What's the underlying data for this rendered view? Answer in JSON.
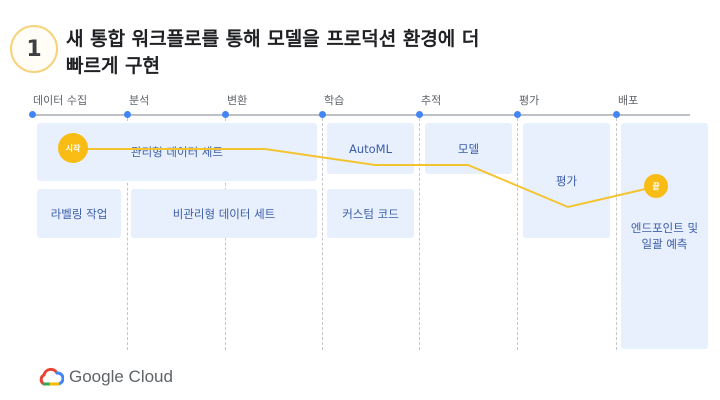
{
  "header": {
    "step_number": "1",
    "title_line1": "새 통합 워크플로를 통해 모델을 프로덕션 환경에 더",
    "title_line2": "빠르게 구현"
  },
  "stages": [
    {
      "label": "데이터 수집"
    },
    {
      "label": "분석"
    },
    {
      "label": "변환"
    },
    {
      "label": "학습"
    },
    {
      "label": "추적"
    },
    {
      "label": "평가"
    },
    {
      "label": "배포"
    }
  ],
  "boxes": {
    "managed_dataset": "관리형 데이터 세트",
    "labeling": "라벨링 작업",
    "unmanaged_dataset": "비관리형 데이터 세트",
    "automl": "AutoML",
    "custom_code": "커스텀 코드",
    "model": "모델",
    "evaluation": "평가",
    "endpoint_line1": "엔드포인트 및",
    "endpoint_line2": "일괄 예측"
  },
  "markers": {
    "start": "시작",
    "end": "끝"
  },
  "colors": {
    "box_fill": "#e8f0fe",
    "box_text": "#3b5da8",
    "stage_dot": "#4285f4",
    "path": "#f4c430",
    "marker": "#f9bc15"
  },
  "logo": {
    "text": "Google Cloud"
  }
}
